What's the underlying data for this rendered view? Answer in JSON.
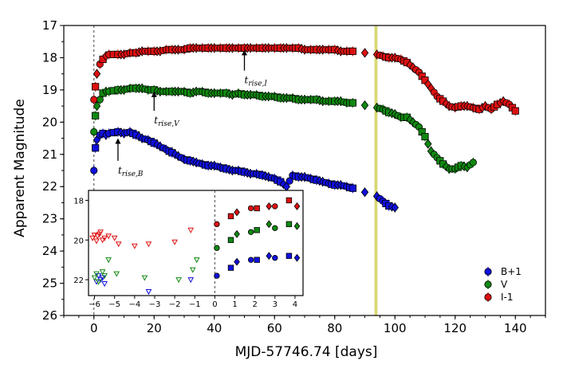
{
  "chart_data": {
    "type": "scatter",
    "xlabel": "MJD-57746.74 [days]",
    "ylabel": "Apparent Magnitude",
    "xlim": [
      -10,
      150
    ],
    "ylim": [
      26,
      17
    ],
    "xticks": [
      "0",
      "20",
      "40",
      "60",
      "80",
      "100",
      "120",
      "140"
    ],
    "xtick_values": [
      0,
      20,
      40,
      60,
      80,
      100,
      120,
      140
    ],
    "yticks": [
      "17",
      "18",
      "19",
      "20",
      "21",
      "22",
      "23",
      "24",
      "25",
      "26"
    ],
    "ytick_values": [
      17,
      18,
      19,
      20,
      21,
      22,
      23,
      24,
      25,
      26
    ],
    "vline_x": 0,
    "highlight_band": [
      93.2,
      94.2
    ],
    "highlight_color": "#d4d466",
    "series": [
      {
        "name": "B+1",
        "color": "#1010dd",
        "x": [
          0,
          0.5,
          1,
          2,
          3,
          4,
          5,
          8,
          10,
          12,
          14,
          16,
          18,
          20,
          22,
          24,
          26,
          28,
          30,
          32,
          34,
          36,
          38,
          40,
          42,
          44,
          46,
          48,
          50,
          52,
          54,
          56,
          58,
          60,
          62,
          64,
          66,
          68,
          70,
          72,
          74,
          76,
          78,
          80,
          82,
          84,
          86,
          94,
          96,
          98,
          100
        ],
        "y": [
          21.5,
          20.8,
          20.55,
          20.4,
          20.35,
          20.4,
          20.35,
          20.3,
          20.35,
          20.3,
          20.4,
          20.5,
          20.55,
          20.65,
          20.75,
          20.85,
          20.95,
          21.05,
          21.15,
          21.2,
          21.25,
          21.3,
          21.35,
          21.35,
          21.4,
          21.45,
          21.5,
          21.5,
          21.55,
          21.6,
          21.6,
          21.65,
          21.7,
          21.75,
          21.85,
          22.0,
          21.65,
          21.7,
          21.7,
          21.75,
          21.8,
          21.85,
          21.9,
          21.95,
          21.95,
          22.0,
          22.05,
          22.3,
          22.45,
          22.6,
          22.65
        ]
      },
      {
        "name": "V",
        "color": "#118811",
        "x": [
          0,
          0.5,
          1,
          2,
          3,
          4,
          5,
          8,
          10,
          12,
          14,
          16,
          18,
          20,
          22,
          24,
          26,
          28,
          30,
          32,
          34,
          36,
          38,
          40,
          42,
          44,
          46,
          48,
          50,
          52,
          54,
          56,
          58,
          60,
          62,
          64,
          66,
          68,
          70,
          72,
          74,
          76,
          78,
          80,
          82,
          84,
          86,
          94,
          96,
          98,
          100,
          102,
          104,
          106,
          108,
          110,
          112,
          114,
          116,
          118,
          120,
          122,
          124,
          126
        ],
        "y": [
          20.3,
          19.8,
          19.5,
          19.3,
          19.1,
          19.05,
          19.05,
          19.0,
          19.0,
          18.95,
          18.95,
          18.95,
          19.0,
          19.0,
          19.05,
          19.05,
          19.05,
          19.05,
          19.05,
          19.1,
          19.05,
          19.05,
          19.1,
          19.1,
          19.1,
          19.1,
          19.15,
          19.1,
          19.15,
          19.15,
          19.15,
          19.2,
          19.2,
          19.2,
          19.25,
          19.25,
          19.25,
          19.3,
          19.3,
          19.3,
          19.3,
          19.35,
          19.35,
          19.35,
          19.35,
          19.4,
          19.4,
          19.55,
          19.6,
          19.7,
          19.75,
          19.85,
          19.85,
          20.0,
          20.15,
          20.45,
          20.9,
          21.1,
          21.3,
          21.45,
          21.45,
          21.35,
          21.4,
          21.25
        ]
      },
      {
        "name": "I-1",
        "color": "#dd1111",
        "x": [
          0,
          0.5,
          1,
          2,
          3,
          4,
          5,
          8,
          10,
          12,
          14,
          16,
          18,
          20,
          22,
          24,
          26,
          28,
          30,
          32,
          34,
          36,
          38,
          40,
          42,
          44,
          46,
          48,
          50,
          52,
          54,
          56,
          58,
          60,
          62,
          64,
          66,
          68,
          70,
          72,
          74,
          76,
          78,
          80,
          82,
          84,
          86,
          94,
          96,
          98,
          100,
          102,
          104,
          106,
          108,
          110,
          112,
          114,
          116,
          118,
          120,
          122,
          124,
          126,
          128,
          130,
          132,
          134,
          136,
          138,
          140
        ],
        "y": [
          19.3,
          18.9,
          18.5,
          18.2,
          18.05,
          17.95,
          17.9,
          17.9,
          17.9,
          17.85,
          17.85,
          17.8,
          17.8,
          17.8,
          17.8,
          17.75,
          17.75,
          17.75,
          17.75,
          17.7,
          17.7,
          17.7,
          17.7,
          17.7,
          17.7,
          17.7,
          17.7,
          17.7,
          17.7,
          17.7,
          17.7,
          17.7,
          17.7,
          17.7,
          17.7,
          17.7,
          17.7,
          17.7,
          17.75,
          17.75,
          17.75,
          17.75,
          17.75,
          17.75,
          17.8,
          17.8,
          17.8,
          17.9,
          17.95,
          18.0,
          18.0,
          18.05,
          18.15,
          18.3,
          18.45,
          18.7,
          18.95,
          19.2,
          19.35,
          19.5,
          19.55,
          19.5,
          19.5,
          19.55,
          19.6,
          19.5,
          19.6,
          19.45,
          19.35,
          19.45,
          19.65
        ]
      }
    ],
    "annotations": [
      {
        "label": "t",
        "subscript": "rise,B",
        "arrow_x": 8,
        "arrow_from_y": 21.2,
        "arrow_to_y": 20.5
      },
      {
        "label": "t",
        "subscript": "rise,V",
        "arrow_x": 20,
        "arrow_from_y": 19.65,
        "arrow_to_y": 19.05
      },
      {
        "label": "t",
        "subscript": "rise,I",
        "arrow_x": 50,
        "arrow_from_y": 18.4,
        "arrow_to_y": 17.75
      }
    ],
    "inset": {
      "xlim": [
        -6.3,
        4.4
      ],
      "ylim": [
        22.8,
        17.5
      ],
      "xticks": [
        "−6",
        "−5",
        "−4",
        "−3",
        "−2",
        "−1",
        "0",
        "1",
        "2",
        "3",
        "4"
      ],
      "xtick_values": [
        -6,
        -5,
        -4,
        -3,
        -2,
        -1,
        0,
        1,
        2,
        3,
        4
      ],
      "yticks": [
        "18",
        "20",
        "22"
      ],
      "ytick_values": [
        18,
        20,
        22
      ],
      "vline_x": 0,
      "upper_limits": [
        {
          "name": "B+1",
          "x": [
            -5.9,
            -5.8,
            -5.7,
            -5.6,
            -5.5,
            -3.3,
            -1.2
          ],
          "y": [
            22.1,
            21.8,
            22.0,
            21.9,
            22.2,
            22.6,
            22.0
          ]
        },
        {
          "name": "V",
          "x": [
            -6.0,
            -5.9,
            -5.8,
            -5.6,
            -5.5,
            -5.3,
            -4.9,
            -3.5,
            -1.8,
            -1.1,
            -0.9
          ],
          "y": [
            21.9,
            21.7,
            22.1,
            21.6,
            21.8,
            21.0,
            21.7,
            21.9,
            22.0,
            21.5,
            21.0
          ],
          "extra": []
        },
        {
          "name": "I-1",
          "x": [
            -6.1,
            -6.0,
            -5.9,
            -5.85,
            -5.75,
            -5.7,
            -5.6,
            -5.5,
            -5.3,
            -5.0,
            -4.8,
            -4.0,
            -3.3,
            -2.0,
            -1.2
          ],
          "y": [
            19.9,
            19.75,
            20.05,
            19.8,
            19.7,
            19.6,
            20.0,
            19.9,
            19.8,
            19.9,
            20.2,
            20.3,
            20.2,
            20.1,
            19.5
          ]
        }
      ],
      "series": [
        {
          "name": "B+1",
          "color": "#1010dd",
          "points": [
            [
              0.1,
              21.8
            ],
            [
              0.8,
              21.4
            ],
            [
              1.1,
              21.1
            ],
            [
              1.8,
              21.0
            ],
            [
              2.1,
              21.0
            ],
            [
              2.7,
              20.8
            ],
            [
              3.0,
              20.9
            ],
            [
              3.7,
              20.8
            ],
            [
              4.1,
              20.9
            ]
          ]
        },
        {
          "name": "V",
          "color": "#118811",
          "points": [
            [
              0.1,
              20.4
            ],
            [
              0.8,
              20.0
            ],
            [
              1.1,
              19.7
            ],
            [
              1.8,
              19.6
            ],
            [
              2.1,
              19.5
            ],
            [
              2.7,
              19.2
            ],
            [
              3.0,
              19.4
            ],
            [
              3.7,
              19.2
            ],
            [
              4.1,
              19.3
            ]
          ]
        },
        {
          "name": "I-1",
          "color": "#dd1111",
          "points": [
            [
              0.1,
              19.2
            ],
            [
              0.8,
              18.8
            ],
            [
              1.1,
              18.6
            ],
            [
              1.8,
              18.4
            ],
            [
              2.1,
              18.4
            ],
            [
              2.7,
              18.3
            ],
            [
              3.0,
              18.3
            ],
            [
              3.7,
              18.0
            ],
            [
              4.1,
              18.3
            ]
          ]
        }
      ]
    },
    "legend": [
      {
        "label": "B+1",
        "color": "#1010dd"
      },
      {
        "label": "V",
        "color": "#118811"
      },
      {
        "label": "I-1",
        "color": "#dd1111"
      }
    ]
  }
}
